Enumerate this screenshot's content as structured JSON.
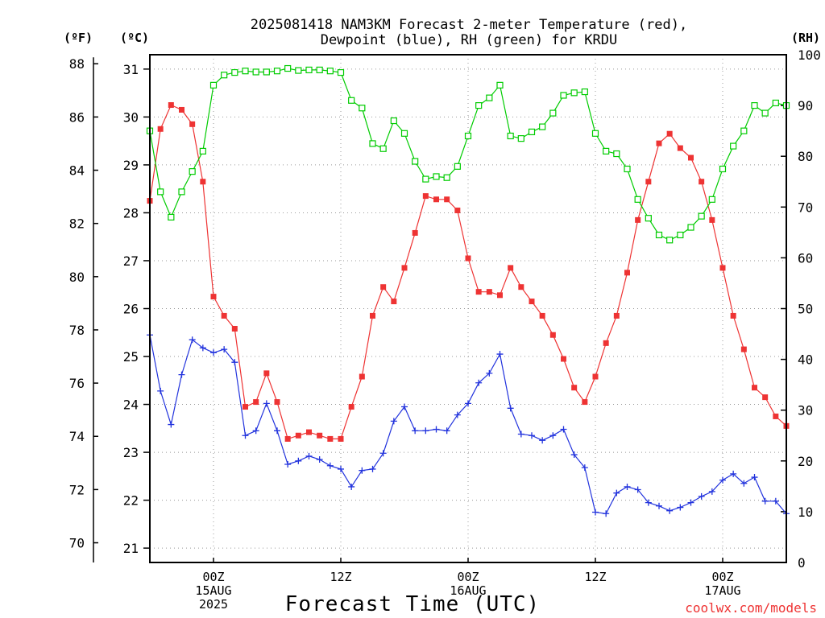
{
  "chart_data": {
    "type": "line",
    "title_lines": [
      "2025081418 NAM3KM Forecast 2-meter Temperature (red),",
      "Dewpoint (blue), RH (green) for KRDU"
    ],
    "unit_labels": {
      "f": "(ºF)",
      "c": "(ºC)",
      "rh": "(RH)"
    },
    "xlabel": "Forecast Time (UTC)",
    "credit": "coolwx.com/models",
    "x_start": "2025-08-14 18Z",
    "x_step_hours": 1,
    "x_ticks": [
      {
        "hour": 6,
        "lines": [
          "00Z",
          "15AUG",
          "2025"
        ]
      },
      {
        "hour": 18,
        "lines": [
          "12Z"
        ]
      },
      {
        "hour": 30,
        "lines": [
          "00Z",
          "16AUG"
        ]
      },
      {
        "hour": 42,
        "lines": [
          "12Z"
        ]
      },
      {
        "hour": 54,
        "lines": [
          "00Z",
          "17AUG"
        ]
      }
    ],
    "x_range_hours": [
      0,
      60
    ],
    "celsius_axis": {
      "ylim": [
        20.7,
        31.3
      ],
      "ticks": [
        21,
        22,
        23,
        24,
        25,
        26,
        27,
        28,
        29,
        30,
        31
      ]
    },
    "fahrenheit_axis": {
      "ticks": [
        70,
        72,
        74,
        76,
        78,
        80,
        82,
        84,
        86,
        88
      ]
    },
    "rh_axis": {
      "ylim": [
        0,
        100
      ],
      "ticks": [
        0,
        10,
        20,
        30,
        40,
        50,
        60,
        70,
        80,
        90,
        100
      ]
    },
    "grid": true,
    "series": [
      {
        "name": "Temperature",
        "axis": "celsius",
        "color": "#ee3333",
        "marker": "filled-square",
        "values": [
          28.25,
          29.75,
          30.25,
          30.15,
          29.85,
          28.65,
          26.25,
          25.85,
          25.58,
          23.95,
          24.05,
          24.65,
          24.05,
          23.28,
          23.35,
          23.42,
          23.35,
          23.28,
          23.28,
          23.95,
          24.58,
          25.85,
          26.45,
          26.15,
          26.85,
          27.58,
          28.35,
          28.28,
          28.28,
          28.05,
          27.05,
          26.35,
          26.35,
          26.28,
          26.85,
          26.45,
          26.15,
          25.85,
          25.45,
          24.95,
          24.35,
          24.05,
          24.58,
          25.28,
          25.85,
          26.75,
          27.85,
          28.65,
          29.45,
          29.65,
          29.35,
          29.15,
          28.65,
          27.85,
          26.85,
          25.85,
          25.15,
          24.35,
          24.15,
          23.75,
          23.55
        ]
      },
      {
        "name": "Dewpoint",
        "axis": "celsius",
        "color": "#2233dd",
        "marker": "plus",
        "values": [
          25.45,
          24.28,
          23.58,
          24.62,
          25.35,
          25.18,
          25.08,
          25.15,
          24.88,
          23.35,
          23.45,
          24.02,
          23.45,
          22.75,
          22.82,
          22.92,
          22.85,
          22.72,
          22.65,
          22.28,
          22.62,
          22.65,
          22.98,
          23.65,
          23.95,
          23.45,
          23.45,
          23.48,
          23.45,
          23.78,
          24.02,
          24.45,
          24.65,
          25.05,
          23.92,
          23.38,
          23.35,
          23.25,
          23.35,
          23.48,
          22.95,
          22.68,
          21.75,
          21.72,
          22.15,
          22.28,
          22.22,
          21.95,
          21.88,
          21.78,
          21.85,
          21.95,
          22.08,
          22.18,
          22.42,
          22.55,
          22.35,
          22.48,
          21.98,
          21.98,
          21.72
        ]
      },
      {
        "name": "RH",
        "axis": "rh",
        "color": "#00cc00",
        "marker": "open-square",
        "values": [
          85,
          73,
          68,
          73,
          77,
          81,
          94,
          96,
          96.5,
          96.8,
          96.6,
          96.6,
          96.8,
          97.3,
          96.9,
          97,
          97,
          96.8,
          96.5,
          91,
          89.5,
          82.5,
          81.5,
          87,
          84.5,
          79,
          75.5,
          76,
          75.8,
          78,
          84,
          90,
          91.5,
          94,
          84,
          83.5,
          84.8,
          85.8,
          88.5,
          92,
          92.5,
          92.7,
          84.5,
          81,
          80.5,
          77.5,
          71.5,
          67.8,
          64.5,
          63.5,
          64.5,
          66,
          68.2,
          71.5,
          77.5,
          82,
          85,
          90,
          88.5,
          90.5,
          90
        ]
      }
    ]
  }
}
